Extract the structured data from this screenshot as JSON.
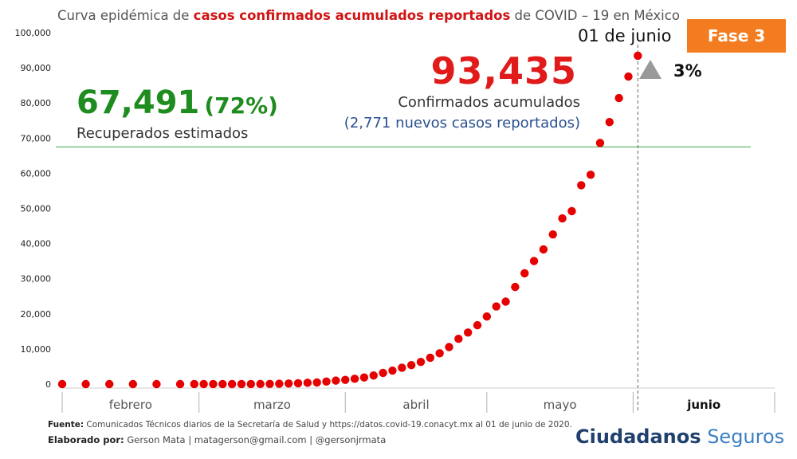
{
  "title": {
    "prefix": "Curva epidémica de ",
    "highlight": "casos confirmados acumulados reportados",
    "suffix": "  de COVID – 19 en México"
  },
  "phase_badge": "Fase 3",
  "date_label": "01 de junio",
  "growth_pct": "3%",
  "confirmed": {
    "value": "93,435",
    "label": "Confirmados acumulados",
    "new_cases": "(2,771 nuevos casos reportados)"
  },
  "recovered": {
    "value": "67,491",
    "percent": "(72%)",
    "label": "Recuperados estimados"
  },
  "footer": {
    "source_label": "Fuente:",
    "source_text": " Comunicados Técnicos diarios de la Secretaría de Salud y https://datos.covid-19.conacyt.mx al 01 de junio de 2020.",
    "credits_label": "Elaborado por:",
    "credits_text": " Gerson Mata | matagerson@gmail.com | @gersonjrmata"
  },
  "brand": {
    "part1": "Ciudadanos",
    "part2": "Seguros"
  },
  "colors": {
    "series": "#e60000",
    "recovered_line": "#3aa64a",
    "phase": "#f47c20",
    "confirmed": "#e11a1a",
    "recovered": "#1e8c1e",
    "new_cases": "#2b4f8f"
  },
  "chart_data": {
    "type": "scatter",
    "title": "Curva epidémica de casos confirmados acumulados reportados  de COVID – 19 en México",
    "y_ticks": [
      "0",
      "10,000",
      "20,000",
      "30,000",
      "40,000",
      "50,000",
      "60,000",
      "70,000",
      "80,000",
      "90,000",
      "100,000"
    ],
    "ylim": [
      0,
      100000
    ],
    "x_range": [
      "2020-01-31",
      "2020-06-30"
    ],
    "month_labels": [
      "febrero",
      "marzo",
      "abril",
      "mayo",
      "junio"
    ],
    "recovered_reference": 67491,
    "current_marker": "2020-06-01",
    "series": [
      {
        "x": [
          "2020-01-31",
          "2020-02-05",
          "2020-02-10",
          "2020-02-15",
          "2020-02-20",
          "2020-02-25",
          "2020-02-28",
          "2020-03-01",
          "2020-03-03",
          "2020-03-05",
          "2020-03-07",
          "2020-03-09",
          "2020-03-11",
          "2020-03-13",
          "2020-03-15",
          "2020-03-17",
          "2020-03-19",
          "2020-03-21",
          "2020-03-23",
          "2020-03-25",
          "2020-03-27",
          "2020-03-29",
          "2020-03-31",
          "2020-04-02",
          "2020-04-04",
          "2020-04-06",
          "2020-04-08",
          "2020-04-10",
          "2020-04-12",
          "2020-04-14",
          "2020-04-16",
          "2020-04-18",
          "2020-04-20",
          "2020-04-22",
          "2020-04-24",
          "2020-04-26",
          "2020-04-28",
          "2020-04-30",
          "2020-05-02",
          "2020-05-04",
          "2020-05-06",
          "2020-05-08",
          "2020-05-10",
          "2020-05-12",
          "2020-05-14",
          "2020-05-16",
          "2020-05-18",
          "2020-05-20",
          "2020-05-22",
          "2020-05-24",
          "2020-05-26",
          "2020-05-28",
          "2020-05-30",
          "2020-06-01"
        ],
        "y": [
          0,
          0,
          0,
          0,
          0,
          0,
          5,
          7,
          8,
          10,
          12,
          15,
          20,
          30,
          53,
          93,
          164,
          251,
          367,
          475,
          717,
          993,
          1215,
          1510,
          1890,
          2439,
          3181,
          3844,
          4661,
          5399,
          6297,
          7497,
          8772,
          10544,
          12872,
          14677,
          16752,
          19224,
          22088,
          23471,
          27634,
          31522,
          35022,
          38324,
          42595,
          47144,
          49219,
          56594,
          59567,
          68620,
          74560,
          81400,
          87512,
          93435
        ]
      }
    ]
  }
}
